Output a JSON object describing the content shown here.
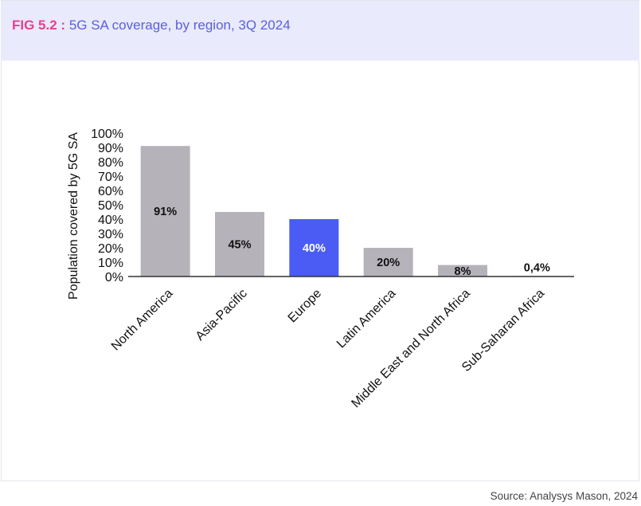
{
  "figure": {
    "label": "FIG 5.2 :",
    "title": "5G SA coverage, by region, 3Q 2024",
    "source": "Source: Analysys Mason, 2024"
  },
  "colors": {
    "bar_default": "#b5b2ba",
    "bar_highlight": "#4a5cf4",
    "label_dark": "#111111",
    "label_light": "#ffffff",
    "fig_label": "#e8408f",
    "fig_title": "#5a5fe0",
    "header_bg": "#e9eafb"
  },
  "chart_data": {
    "type": "bar",
    "title": "5G SA coverage, by region, 3Q 2024",
    "ylabel": "Population covered by 5G SA",
    "xlabel": "",
    "categories": [
      "North America",
      "Asia-Pacific",
      "Europe",
      "Latin America",
      "Middle East and North Africa",
      "Sub-Saharan Africa"
    ],
    "values": [
      91,
      45,
      40,
      20,
      8,
      0.4
    ],
    "data_labels": [
      "91%",
      "45%",
      "40%",
      "20%",
      "8%",
      "0,4%"
    ],
    "highlight": [
      "Europe"
    ],
    "ylim": [
      0,
      100
    ],
    "yticks": [
      0,
      10,
      20,
      30,
      40,
      50,
      60,
      70,
      80,
      90,
      100
    ],
    "ytick_labels": [
      "0%",
      "10%",
      "20%",
      "30%",
      "40%",
      "50%",
      "60%",
      "70%",
      "80%",
      "90%",
      "100%"
    ],
    "grid": false,
    "legend": "none"
  }
}
